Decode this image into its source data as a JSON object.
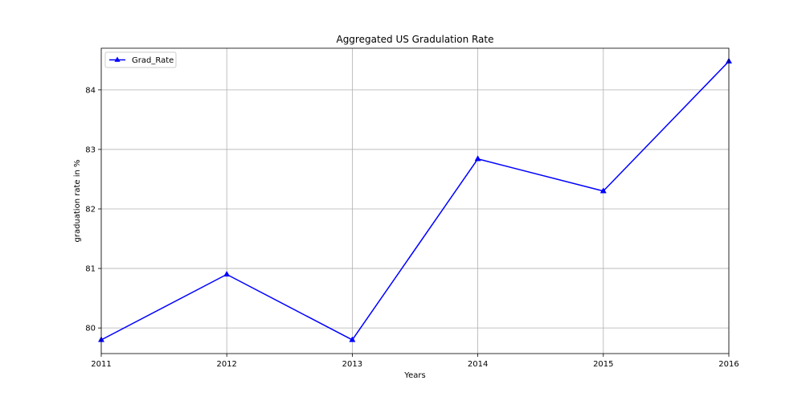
{
  "chart_data": {
    "type": "line",
    "title": "Aggregated US Gradulation Rate",
    "xlabel": "Years",
    "ylabel": "graduation rate in %",
    "x": [
      2011,
      2012,
      2013,
      2014,
      2015,
      2016
    ],
    "x_tick_labels": [
      "2011",
      "2012",
      "2013",
      "2014",
      "2015",
      "2016"
    ],
    "y_ticks": [
      80,
      81,
      82,
      83,
      84
    ],
    "y_tick_labels": [
      "80",
      "81",
      "82",
      "83",
      "84"
    ],
    "xlim": [
      2011,
      2016
    ],
    "ylim": [
      79.57,
      84.7
    ],
    "grid": true,
    "legend_position": "upper-left",
    "series": [
      {
        "name": "Grad_Rate",
        "values": [
          79.8,
          80.9,
          79.8,
          82.84,
          82.3,
          84.48
        ],
        "color": "#0000ff",
        "marker": "triangle-up"
      }
    ]
  }
}
